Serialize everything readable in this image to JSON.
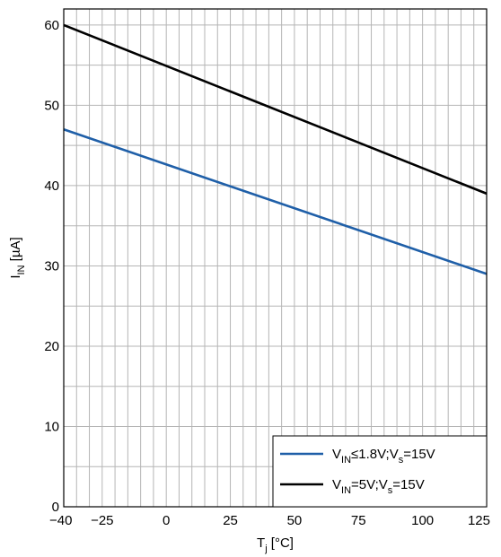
{
  "chart_data": {
    "type": "line",
    "title": "",
    "xlabel": {
      "main": "T",
      "sub": "j",
      "unit": " [°C]"
    },
    "ylabel": {
      "main": "I",
      "sub": "IN",
      "unit": " [µA]"
    },
    "xlim": [
      -40,
      125
    ],
    "ylim": [
      0,
      62
    ],
    "x_ticks": [
      -40,
      -25,
      0,
      25,
      50,
      75,
      100,
      125
    ],
    "x_tick_labels": [
      "−40",
      "−25",
      "0",
      "25",
      "50",
      "75",
      "100",
      "125"
    ],
    "y_ticks": [
      0,
      10,
      20,
      30,
      40,
      50,
      60
    ],
    "y_tick_labels": [
      "0",
      "10",
      "20",
      "30",
      "40",
      "50",
      "60"
    ],
    "grid": true,
    "legend_position": "bottom-right",
    "series": [
      {
        "label_parts": [
          {
            "t": "V",
            "sub": false
          },
          {
            "t": "IN",
            "sub": true
          },
          {
            "t": "≤1.8V;V",
            "sub": false
          },
          {
            "t": "s",
            "sub": true
          },
          {
            "t": "=15V",
            "sub": false
          }
        ],
        "color": "#1f5fa8",
        "x": [
          -40,
          125
        ],
        "y": [
          47,
          29
        ]
      },
      {
        "label_parts": [
          {
            "t": "V",
            "sub": false
          },
          {
            "t": "IN",
            "sub": true
          },
          {
            "t": "=5V;V",
            "sub": false
          },
          {
            "t": "s",
            "sub": true
          },
          {
            "t": "=15V",
            "sub": false
          }
        ],
        "color": "#000000",
        "x": [
          -40,
          125
        ],
        "y": [
          60,
          39
        ]
      }
    ]
  }
}
